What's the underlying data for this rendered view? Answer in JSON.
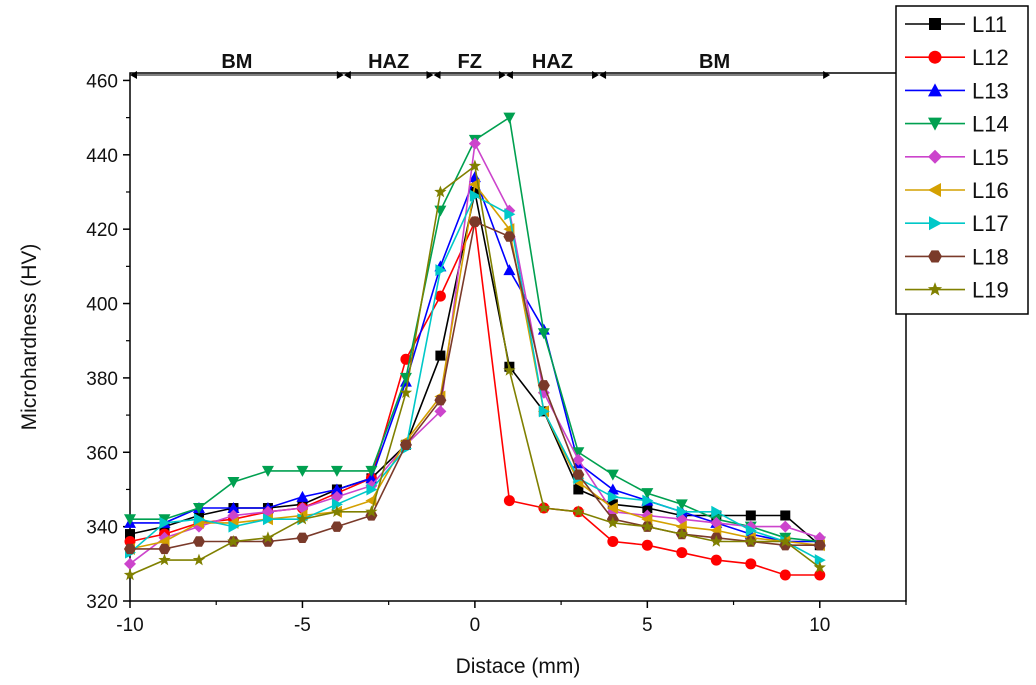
{
  "chart_data": {
    "type": "line",
    "xlabel": "Distace (mm)",
    "ylabel": "Microhardness (HV)",
    "xlim": [
      -10,
      12.5
    ],
    "ylim": [
      320,
      462
    ],
    "x_ticks": [
      -10,
      -5,
      0,
      5,
      10
    ],
    "y_ticks": [
      320,
      340,
      360,
      380,
      400,
      420,
      440,
      460
    ],
    "grid": false,
    "legend_position": "right",
    "regions": [
      {
        "label": "BM",
        "from": -10,
        "to": -3.8
      },
      {
        "label": "HAZ",
        "from": -3.8,
        "to": -1.2
      },
      {
        "label": "FZ",
        "from": -1.2,
        "to": 0.9
      },
      {
        "label": "HAZ",
        "from": 0.9,
        "to": 3.6
      },
      {
        "label": "BM",
        "from": 3.6,
        "to": 10.3
      }
    ],
    "x": [
      -10,
      -9,
      -8,
      -7,
      -6,
      -5,
      -4,
      -3,
      -2,
      -1,
      0,
      1,
      2,
      3,
      4,
      5,
      6,
      7,
      8,
      9,
      10
    ],
    "series": [
      {
        "name": "L11",
        "color": "#000000",
        "marker": "square",
        "values": [
          338,
          340,
          343,
          345,
          345,
          346,
          350,
          353,
          362,
          386,
          430,
          383,
          371,
          350,
          346,
          345,
          343,
          343,
          343,
          343,
          335
        ]
      },
      {
        "name": "L12",
        "color": "#ff0000",
        "marker": "circle",
        "values": [
          336,
          338,
          341,
          342,
          344,
          345,
          349,
          353,
          385,
          402,
          422,
          347,
          345,
          344,
          336,
          335,
          333,
          331,
          330,
          327,
          327
        ]
      },
      {
        "name": "L13",
        "color": "#0000ff",
        "marker": "triangle-up",
        "values": [
          341,
          341,
          345,
          345,
          345,
          348,
          350,
          353,
          379,
          410,
          434,
          409,
          393,
          357,
          350,
          347,
          344,
          341,
          338,
          336,
          336
        ]
      },
      {
        "name": "L14",
        "color": "#00a050",
        "marker": "triangle-down",
        "values": [
          342,
          342,
          345,
          352,
          355,
          355,
          355,
          355,
          380,
          425,
          444,
          450,
          392,
          360,
          354,
          349,
          346,
          342,
          340,
          337,
          336
        ]
      },
      {
        "name": "L15",
        "color": "#cc44cc",
        "marker": "diamond",
        "values": [
          330,
          337,
          340,
          343,
          344,
          345,
          348,
          351,
          362,
          371,
          443,
          425,
          376,
          358,
          344,
          343,
          342,
          341,
          340,
          340,
          337
        ]
      },
      {
        "name": "L16",
        "color": "#d4a000",
        "marker": "triangle-left",
        "values": [
          334,
          336,
          341,
          341,
          342,
          343,
          344,
          347,
          363,
          375,
          432,
          420,
          371,
          352,
          345,
          342,
          340,
          339,
          337,
          336,
          335
        ]
      },
      {
        "name": "L17",
        "color": "#00c8c8",
        "marker": "triangle-right",
        "values": [
          333,
          341,
          342,
          340,
          342,
          342,
          346,
          350,
          361,
          409,
          429,
          424,
          371,
          353,
          348,
          347,
          344,
          344,
          339,
          336,
          331
        ]
      },
      {
        "name": "L18",
        "color": "#7a3a2a",
        "marker": "hexagon",
        "values": [
          334,
          334,
          336,
          336,
          336,
          337,
          340,
          343,
          362,
          374,
          422,
          418,
          378,
          354,
          342,
          340,
          338,
          337,
          336,
          335,
          335
        ]
      },
      {
        "name": "L19",
        "color": "#808000",
        "marker": "star",
        "values": [
          327,
          331,
          331,
          336,
          337,
          342,
          344,
          344,
          376,
          430,
          437,
          382,
          345,
          344,
          341,
          340,
          338,
          336,
          336,
          336,
          329
        ]
      }
    ]
  }
}
